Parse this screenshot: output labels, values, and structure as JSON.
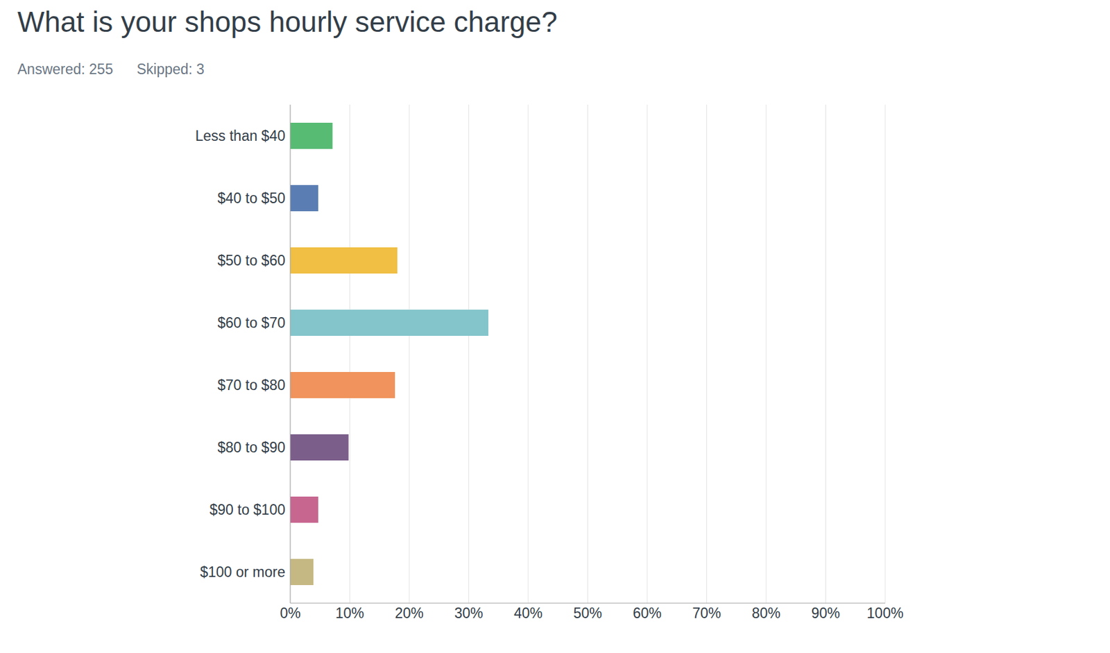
{
  "chart_data": {
    "type": "bar",
    "orientation": "horizontal",
    "title": "What is your shops hourly service charge?",
    "subtitle": [
      "Answered: 255",
      "Skipped: 3"
    ],
    "categories": [
      "Less than $40",
      "$40 to $50",
      "$50 to $60",
      "$60 to $70",
      "$70 to $80",
      "$80 to $90",
      "$90 to $100",
      "$100 or more"
    ],
    "values": [
      7.1,
      4.7,
      18.0,
      33.3,
      17.6,
      9.8,
      4.7,
      3.9
    ],
    "colors": [
      "#57bb74",
      "#5a7db3",
      "#f0bf43",
      "#84c5cb",
      "#f0935c",
      "#7b5e8a",
      "#c76790",
      "#c5b882"
    ],
    "xlim": [
      0,
      100
    ],
    "xticks": [
      {
        "value": 0,
        "label": "0%"
      },
      {
        "value": 10,
        "label": "10%"
      },
      {
        "value": 20,
        "label": "20%"
      },
      {
        "value": 30,
        "label": "30%"
      },
      {
        "value": 40,
        "label": "40%"
      },
      {
        "value": 50,
        "label": "50%"
      },
      {
        "value": 60,
        "label": "60%"
      },
      {
        "value": 70,
        "label": "70%"
      },
      {
        "value": 80,
        "label": "80%"
      },
      {
        "value": 90,
        "label": "90%"
      },
      {
        "value": 100,
        "label": "100%"
      }
    ],
    "grid": true
  }
}
